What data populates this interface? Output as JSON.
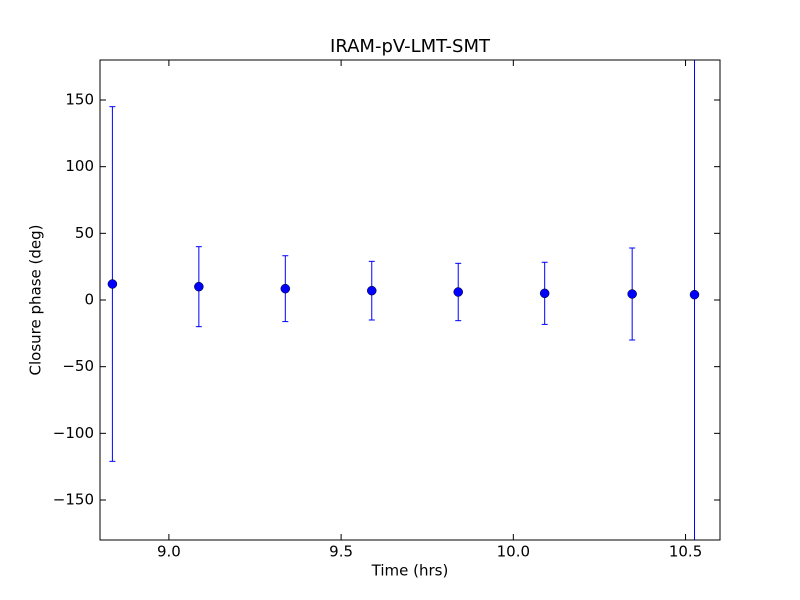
{
  "chart_data": {
    "type": "errorbar",
    "title": "IRAM-pV-LMT-SMT",
    "x_label": "Time (hrs)",
    "y_label": "Closure phase (deg)",
    "series": [
      {
        "color": "#0000ff",
        "x": [
          8.836,
          9.087,
          9.338,
          9.589,
          9.84,
          10.091,
          10.345,
          10.526
        ],
        "values": [
          12,
          10,
          8.5,
          7,
          6,
          5,
          4.5,
          4
        ],
        "errors": [
          133,
          30,
          24.7,
          22,
          21.5,
          23.3,
          34.5,
          250
        ]
      }
    ],
    "xlim": [
      8.8,
      10.6
    ],
    "xticks": [
      {
        "value": 9,
        "label": "9.0"
      },
      9.5,
      {
        "value": 10,
        "label": "10.0"
      },
      10.5
    ],
    "ylim": [
      -180,
      180
    ],
    "yticks": [
      {
        "value": -150,
        "label": "−150"
      },
      {
        "value": -100,
        "label": "−100"
      },
      {
        "value": -50,
        "label": "−50"
      },
      0,
      50,
      100,
      150
    ],
    "grid": false
  }
}
